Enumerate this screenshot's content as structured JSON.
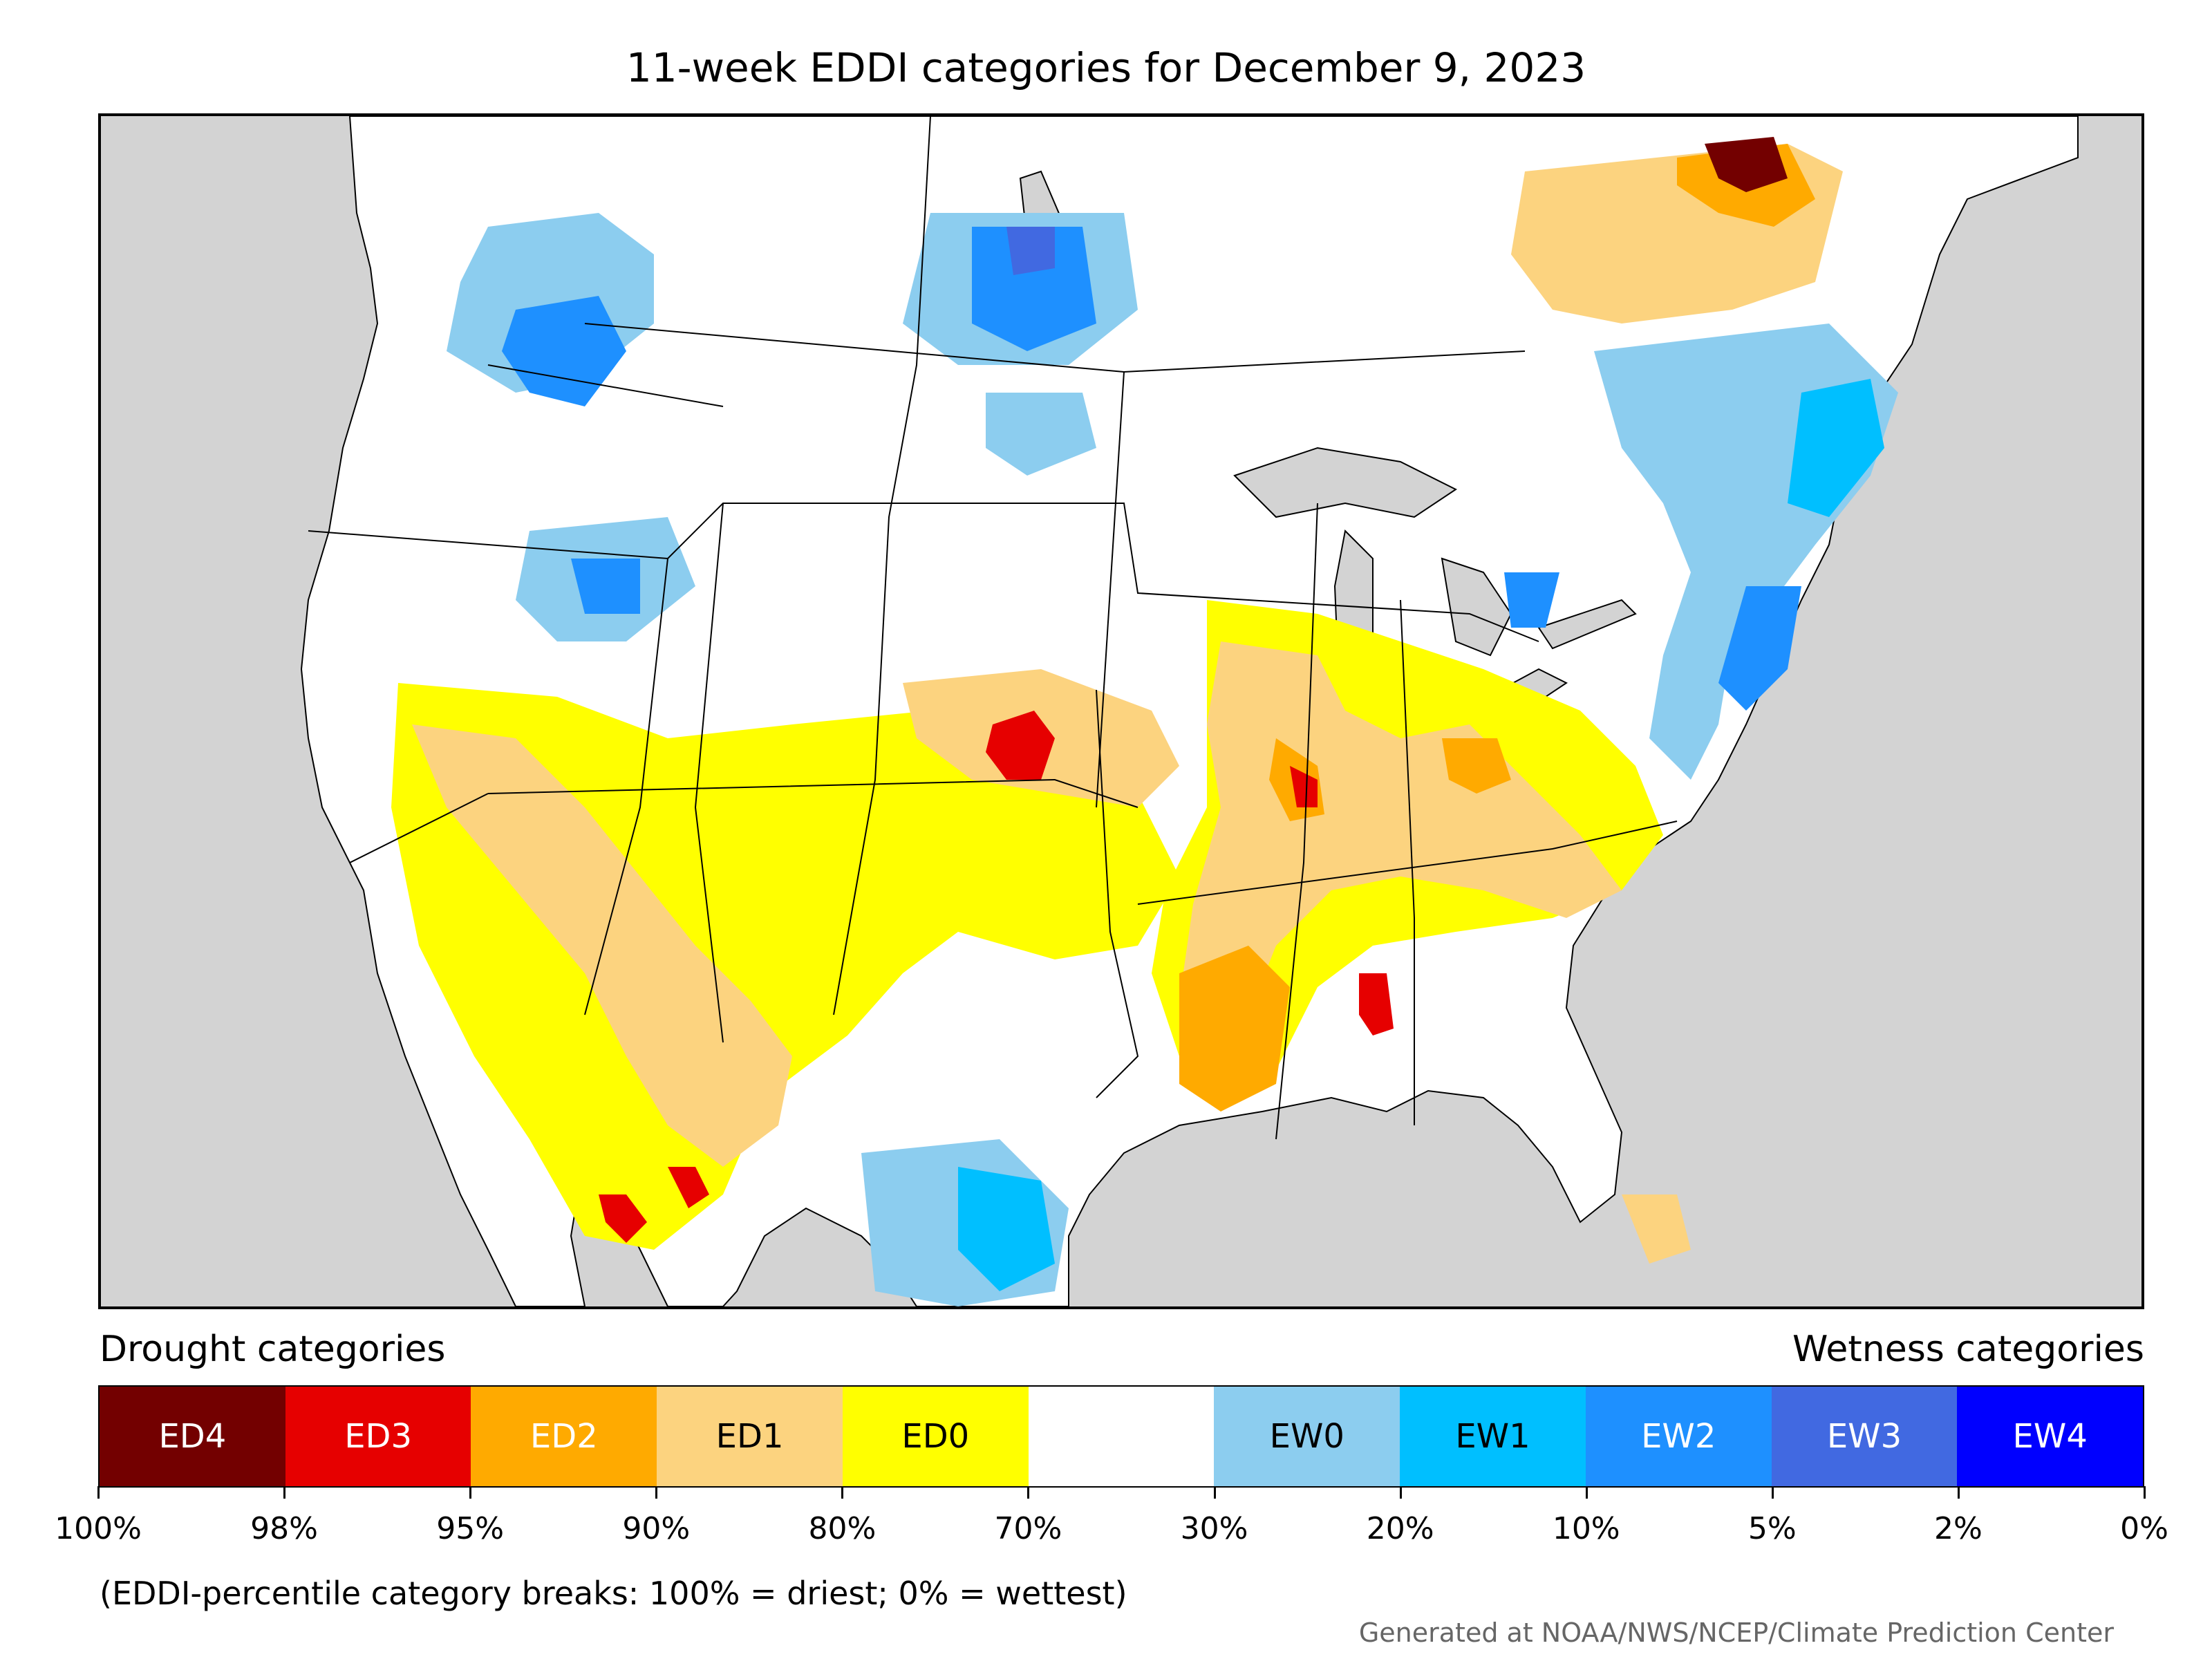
{
  "title": "11-week EDDI categories for December 9, 2023",
  "legend": {
    "left_title": "Drought categories",
    "right_title": "Wetness categories",
    "categories": [
      {
        "label": "ED4",
        "color": "#730000",
        "text_color": "#ffffff"
      },
      {
        "label": "ED3",
        "color": "#e60000",
        "text_color": "#ffffff"
      },
      {
        "label": "ED2",
        "color": "#ffaa00",
        "text_color": "#ffffff"
      },
      {
        "label": "ED1",
        "color": "#fcd37f",
        "text_color": "#000000"
      },
      {
        "label": "ED0",
        "color": "#ffff00",
        "text_color": "#000000"
      },
      {
        "label": "",
        "color": "#ffffff",
        "text_color": "#000000"
      },
      {
        "label": "EW0",
        "color": "#8ccdef",
        "text_color": "#000000"
      },
      {
        "label": "EW1",
        "color": "#00bfff",
        "text_color": "#000000"
      },
      {
        "label": "EW2",
        "color": "#1e90ff",
        "text_color": "#ffffff"
      },
      {
        "label": "EW3",
        "color": "#4169e1",
        "text_color": "#ffffff"
      },
      {
        "label": "EW4",
        "color": "#0000ff",
        "text_color": "#ffffff"
      }
    ],
    "tick_labels": [
      "100%",
      "98%",
      "95%",
      "90%",
      "80%",
      "70%",
      "30%",
      "20%",
      "10%",
      "5%",
      "2%",
      "0%"
    ]
  },
  "note": "(EDDI-percentile category breaks: 100% = driest; 0% = wettest)",
  "credit": "Generated at NOAA/NWS/NCEP/Climate Prediction Center",
  "map": {
    "land_color": "#ffffff",
    "water_color": "#d3d3d3",
    "border_color": "#000000"
  }
}
